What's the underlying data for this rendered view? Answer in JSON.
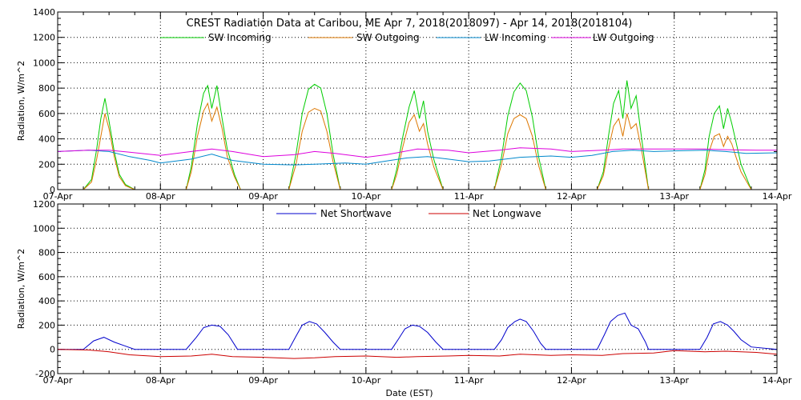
{
  "chart_data": [
    {
      "type": "line",
      "title": "CREST Radiation Data at Caribou, ME   Apr  7, 2018(2018097) - Apr 14, 2018(2018104)",
      "ylabel": "Radiation, W/m^2",
      "xlabel": "",
      "ylim": [
        0,
        1400
      ],
      "yticks": [
        0,
        200,
        400,
        600,
        800,
        1000,
        1200,
        1400
      ],
      "xlim": [
        0,
        7
      ],
      "x_tick_labels": [
        "07-Apr",
        "08-Apr",
        "09-Apr",
        "10-Apr",
        "11-Apr",
        "12-Apr",
        "13-Apr",
        "14-Apr"
      ],
      "grid": true,
      "legend_placement": "top",
      "series": [
        {
          "name": "SW Incoming",
          "color": "#00cc00",
          "x": [
            0.25,
            0.33,
            0.38,
            0.42,
            0.46,
            0.5,
            0.55,
            0.6,
            0.66,
            0.75,
            1.25,
            1.3,
            1.36,
            1.42,
            1.46,
            1.5,
            1.55,
            1.6,
            1.65,
            1.72,
            1.78,
            2.25,
            2.32,
            2.38,
            2.44,
            2.5,
            2.56,
            2.62,
            2.68,
            2.75,
            3.25,
            3.3,
            3.36,
            3.42,
            3.47,
            3.52,
            3.56,
            3.6,
            3.66,
            3.75,
            4.25,
            4.32,
            4.38,
            4.44,
            4.5,
            4.56,
            4.62,
            4.68,
            4.75,
            5.25,
            5.31,
            5.36,
            5.41,
            5.46,
            5.5,
            5.54,
            5.58,
            5.63,
            5.68,
            5.75,
            6.25,
            6.3,
            6.34,
            6.39,
            6.44,
            6.48,
            6.52,
            6.56,
            6.6,
            6.65,
            6.75
          ],
          "y": [
            0,
            80,
            320,
            560,
            720,
            540,
            300,
            120,
            40,
            0,
            0,
            180,
            520,
            760,
            820,
            640,
            820,
            560,
            320,
            120,
            0,
            0,
            280,
            600,
            790,
            830,
            800,
            600,
            280,
            0,
            0,
            160,
            420,
            650,
            780,
            560,
            700,
            460,
            240,
            0,
            0,
            260,
            580,
            770,
            840,
            780,
            570,
            260,
            0,
            0,
            140,
            420,
            680,
            780,
            560,
            860,
            640,
            740,
            420,
            0,
            0,
            160,
            420,
            600,
            660,
            480,
            640,
            520,
            380,
            200,
            0
          ]
        },
        {
          "name": "SW Outgoing",
          "color": "#dd7700",
          "x": [
            0.25,
            0.33,
            0.38,
            0.42,
            0.46,
            0.5,
            0.55,
            0.6,
            0.66,
            0.75,
            1.25,
            1.3,
            1.36,
            1.42,
            1.46,
            1.5,
            1.55,
            1.6,
            1.65,
            1.72,
            1.78,
            2.25,
            2.32,
            2.38,
            2.44,
            2.5,
            2.56,
            2.62,
            2.68,
            2.75,
            3.25,
            3.3,
            3.36,
            3.42,
            3.47,
            3.52,
            3.56,
            3.6,
            3.66,
            3.75,
            4.25,
            4.32,
            4.38,
            4.44,
            4.5,
            4.56,
            4.62,
            4.68,
            4.75,
            5.25,
            5.31,
            5.36,
            5.41,
            5.46,
            5.5,
            5.54,
            5.58,
            5.63,
            5.68,
            5.75,
            6.25,
            6.3,
            6.34,
            6.39,
            6.44,
            6.48,
            6.52,
            6.56,
            6.6,
            6.65,
            6.75
          ],
          "y": [
            0,
            60,
            240,
            420,
            600,
            480,
            260,
            100,
            30,
            0,
            0,
            140,
            420,
            620,
            680,
            540,
            650,
            480,
            260,
            100,
            0,
            0,
            200,
            460,
            610,
            640,
            620,
            460,
            220,
            0,
            0,
            120,
            340,
            530,
            590,
            460,
            520,
            360,
            180,
            0,
            0,
            200,
            440,
            560,
            590,
            560,
            420,
            190,
            0,
            0,
            110,
            320,
            500,
            560,
            420,
            600,
            480,
            520,
            320,
            0,
            0,
            120,
            300,
            420,
            440,
            340,
            420,
            360,
            260,
            140,
            0
          ]
        },
        {
          "name": "LW Incoming",
          "color": "#0088cc",
          "x": [
            0,
            0.3,
            0.5,
            0.7,
            0.9,
            1.0,
            1.3,
            1.5,
            1.7,
            2.0,
            2.3,
            2.5,
            2.8,
            3.0,
            3.2,
            3.4,
            3.6,
            3.8,
            4.0,
            4.2,
            4.5,
            4.8,
            5.0,
            5.2,
            5.4,
            5.6,
            5.8,
            6.0,
            6.3,
            6.5,
            6.7,
            7.0
          ],
          "y": [
            300,
            310,
            300,
            260,
            230,
            210,
            240,
            280,
            230,
            200,
            195,
            200,
            210,
            200,
            225,
            250,
            260,
            240,
            220,
            225,
            255,
            265,
            255,
            270,
            300,
            310,
            300,
            305,
            310,
            300,
            285,
            290
          ]
        },
        {
          "name": "LW Outgoing",
          "color": "#dd00dd",
          "x": [
            0,
            0.3,
            0.5,
            0.7,
            1.0,
            1.3,
            1.5,
            1.7,
            2.0,
            2.3,
            2.5,
            2.7,
            3.0,
            3.2,
            3.5,
            3.8,
            4.0,
            4.3,
            4.5,
            4.8,
            5.0,
            5.3,
            5.5,
            5.8,
            6.0,
            6.3,
            6.5,
            6.8,
            7.0
          ],
          "y": [
            300,
            310,
            310,
            295,
            270,
            300,
            320,
            300,
            260,
            275,
            300,
            285,
            255,
            275,
            320,
            310,
            290,
            310,
            330,
            320,
            300,
            310,
            320,
            320,
            320,
            320,
            315,
            310,
            310
          ]
        }
      ]
    },
    {
      "type": "line",
      "title": "",
      "ylabel": "Radiation, W/m^2",
      "xlabel": "Date (EST)",
      "ylim": [
        -200,
        1200
      ],
      "yticks": [
        -200,
        0,
        200,
        400,
        600,
        800,
        1000,
        1200
      ],
      "xlim": [
        0,
        7
      ],
      "x_tick_labels": [
        "07-Apr",
        "08-Apr",
        "09-Apr",
        "10-Apr",
        "11-Apr",
        "12-Apr",
        "13-Apr",
        "14-Apr"
      ],
      "grid": true,
      "legend_placement": "top",
      "series": [
        {
          "name": "Net Shortwave",
          "color": "#0000cc",
          "x": [
            0,
            0.25,
            0.35,
            0.45,
            0.55,
            0.65,
            0.75,
            1.0,
            1.25,
            1.35,
            1.42,
            1.5,
            1.58,
            1.66,
            1.75,
            2.0,
            2.25,
            2.32,
            2.38,
            2.45,
            2.52,
            2.6,
            2.68,
            2.75,
            3.0,
            3.25,
            3.32,
            3.38,
            3.45,
            3.52,
            3.6,
            3.68,
            3.75,
            4.0,
            4.25,
            4.32,
            4.38,
            4.45,
            4.5,
            4.56,
            4.63,
            4.7,
            4.75,
            5.0,
            5.25,
            5.32,
            5.38,
            5.45,
            5.52,
            5.58,
            5.65,
            5.72,
            5.75,
            6.0,
            6.25,
            6.32,
            6.38,
            6.45,
            6.52,
            6.58,
            6.65,
            6.75,
            7.0
          ],
          "y": [
            0,
            0,
            70,
            100,
            60,
            30,
            0,
            0,
            0,
            100,
            180,
            200,
            190,
            120,
            0,
            0,
            0,
            110,
            200,
            230,
            210,
            140,
            60,
            0,
            0,
            0,
            90,
            170,
            200,
            190,
            140,
            60,
            0,
            0,
            0,
            80,
            180,
            230,
            250,
            230,
            150,
            50,
            0,
            0,
            0,
            120,
            230,
            280,
            300,
            200,
            170,
            60,
            0,
            0,
            0,
            100,
            210,
            230,
            200,
            150,
            80,
            20,
            0
          ]
        },
        {
          "name": "Net Longwave",
          "color": "#cc0000",
          "x": [
            0,
            0.3,
            0.5,
            0.7,
            1.0,
            1.3,
            1.5,
            1.7,
            2.0,
            2.3,
            2.5,
            2.7,
            3.0,
            3.3,
            3.5,
            3.8,
            4.0,
            4.3,
            4.5,
            4.8,
            5.0,
            5.3,
            5.5,
            5.8,
            6.0,
            6.3,
            6.5,
            6.8,
            7.0
          ],
          "y": [
            0,
            -5,
            -20,
            -45,
            -60,
            -55,
            -40,
            -60,
            -65,
            -75,
            -70,
            -60,
            -55,
            -65,
            -60,
            -55,
            -50,
            -55,
            -40,
            -50,
            -45,
            -50,
            -35,
            -30,
            -10,
            -20,
            -15,
            -25,
            -40
          ]
        }
      ]
    }
  ]
}
